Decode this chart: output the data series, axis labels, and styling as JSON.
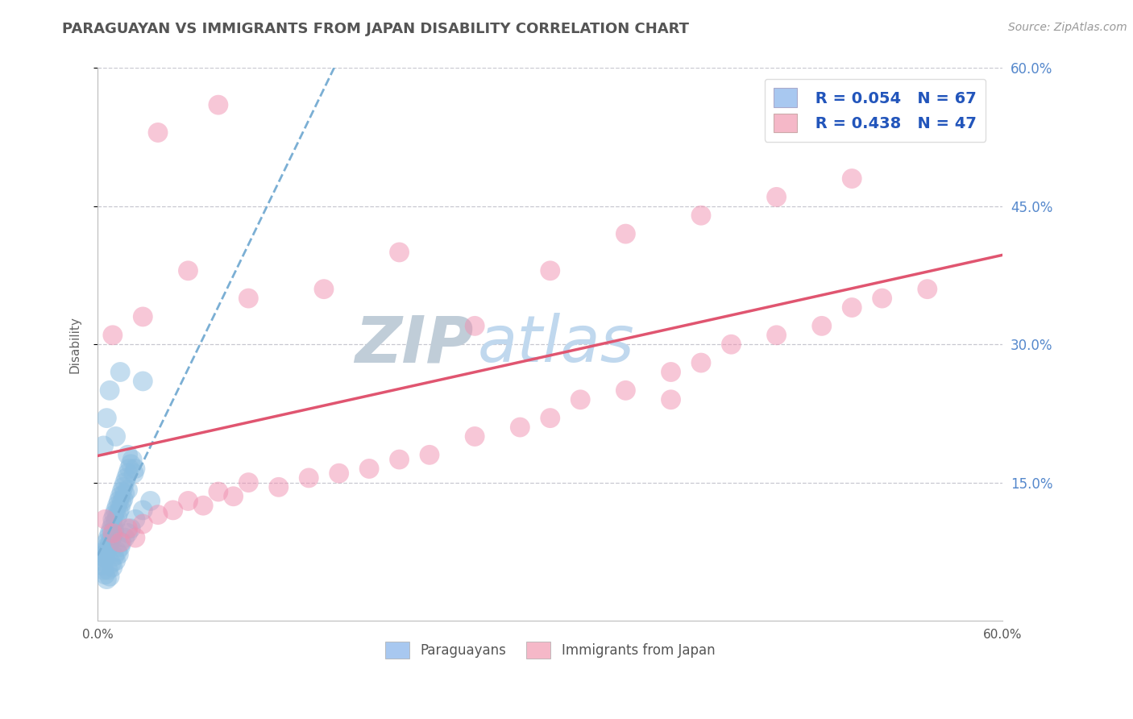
{
  "title": "PARAGUAYAN VS IMMIGRANTS FROM JAPAN DISABILITY CORRELATION CHART",
  "source": "Source: ZipAtlas.com",
  "ylabel": "Disability",
  "xlim": [
    0.0,
    0.6
  ],
  "ylim": [
    0.0,
    0.6
  ],
  "ytick_labels": [
    "15.0%",
    "30.0%",
    "45.0%",
    "60.0%"
  ],
  "ytick_values": [
    0.15,
    0.3,
    0.45,
    0.6
  ],
  "legend_entries": [
    {
      "label": "Paraguayans",
      "R": "0.054",
      "N": "67",
      "color": "#a8c8f0"
    },
    {
      "label": "Immigrants from Japan",
      "R": "0.438",
      "N": "47",
      "color": "#f5b8c8"
    }
  ],
  "paraguayan_scatter_x": [
    0.002,
    0.003,
    0.004,
    0.005,
    0.005,
    0.006,
    0.006,
    0.007,
    0.007,
    0.008,
    0.008,
    0.009,
    0.009,
    0.01,
    0.01,
    0.01,
    0.011,
    0.011,
    0.012,
    0.012,
    0.013,
    0.013,
    0.014,
    0.014,
    0.015,
    0.015,
    0.016,
    0.016,
    0.017,
    0.017,
    0.018,
    0.018,
    0.019,
    0.02,
    0.02,
    0.021,
    0.022,
    0.023,
    0.024,
    0.025,
    0.003,
    0.004,
    0.005,
    0.006,
    0.007,
    0.008,
    0.009,
    0.01,
    0.011,
    0.012,
    0.013,
    0.014,
    0.015,
    0.016,
    0.018,
    0.02,
    0.022,
    0.025,
    0.03,
    0.035,
    0.004,
    0.006,
    0.008,
    0.012,
    0.015,
    0.02,
    0.03
  ],
  "paraguayan_scatter_y": [
    0.065,
    0.07,
    0.075,
    0.072,
    0.068,
    0.08,
    0.085,
    0.09,
    0.078,
    0.095,
    0.082,
    0.1,
    0.088,
    0.11,
    0.105,
    0.092,
    0.115,
    0.098,
    0.12,
    0.108,
    0.125,
    0.112,
    0.13,
    0.118,
    0.135,
    0.122,
    0.14,
    0.128,
    0.145,
    0.132,
    0.15,
    0.138,
    0.155,
    0.16,
    0.142,
    0.165,
    0.17,
    0.175,
    0.16,
    0.165,
    0.06,
    0.055,
    0.05,
    0.045,
    0.055,
    0.048,
    0.062,
    0.058,
    0.07,
    0.065,
    0.075,
    0.072,
    0.08,
    0.085,
    0.09,
    0.095,
    0.1,
    0.11,
    0.12,
    0.13,
    0.19,
    0.22,
    0.25,
    0.2,
    0.27,
    0.18,
    0.26
  ],
  "japan_scatter_x": [
    0.005,
    0.01,
    0.015,
    0.02,
    0.025,
    0.03,
    0.04,
    0.05,
    0.06,
    0.07,
    0.08,
    0.09,
    0.1,
    0.12,
    0.14,
    0.16,
    0.18,
    0.2,
    0.22,
    0.25,
    0.28,
    0.3,
    0.32,
    0.35,
    0.38,
    0.4,
    0.42,
    0.45,
    0.48,
    0.5,
    0.52,
    0.55,
    0.01,
    0.03,
    0.06,
    0.1,
    0.15,
    0.2,
    0.25,
    0.3,
    0.35,
    0.4,
    0.45,
    0.5,
    0.04,
    0.08,
    0.38
  ],
  "japan_scatter_y": [
    0.11,
    0.095,
    0.085,
    0.1,
    0.09,
    0.105,
    0.115,
    0.12,
    0.13,
    0.125,
    0.14,
    0.135,
    0.15,
    0.145,
    0.155,
    0.16,
    0.165,
    0.175,
    0.18,
    0.2,
    0.21,
    0.22,
    0.24,
    0.25,
    0.27,
    0.28,
    0.3,
    0.31,
    0.32,
    0.34,
    0.35,
    0.36,
    0.31,
    0.33,
    0.38,
    0.35,
    0.36,
    0.4,
    0.32,
    0.38,
    0.42,
    0.44,
    0.46,
    0.48,
    0.53,
    0.56,
    0.24
  ],
  "paraguayan_line_color": "#7bafd4",
  "japan_line_color": "#e05570",
  "scatter_paraguayan_color": "#8bbde0",
  "scatter_japan_color": "#f090b0",
  "background_color": "#ffffff",
  "grid_color": "#c8c8d0",
  "title_color": "#555555",
  "right_axis_color": "#5588cc",
  "watermark_zip_color": "#b8cce0",
  "watermark_atlas_color": "#c8ddf0"
}
